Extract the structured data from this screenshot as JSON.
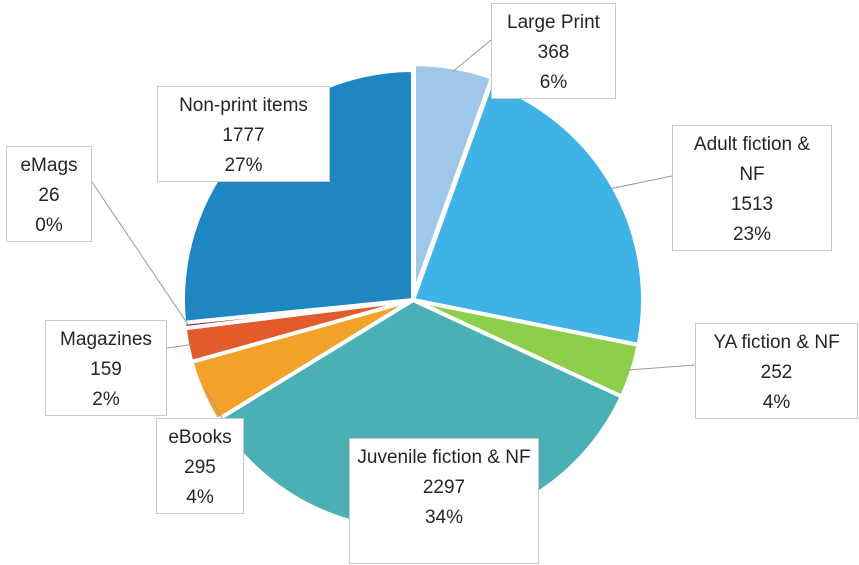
{
  "chart_data": {
    "type": "pie",
    "title": "",
    "slices": [
      {
        "name": "Large Print",
        "value": 368,
        "percent": "6%",
        "color": "#9fc8e8"
      },
      {
        "name": "Adult fiction & NF",
        "value": 1513,
        "percent": "23%",
        "color": "#3fb2e6"
      },
      {
        "name": "YA fiction & NF",
        "value": 252,
        "percent": "4%",
        "color": "#8dcf4a"
      },
      {
        "name": "Juvenile fiction & NF",
        "value": 2297,
        "percent": "34%",
        "color": "#4bb0b6"
      },
      {
        "name": "eBooks",
        "value": 295,
        "percent": "4%",
        "color": "#f2a12a"
      },
      {
        "name": "Magazines",
        "value": 159,
        "percent": "2%",
        "color": "#e35a2b"
      },
      {
        "name": "eMags",
        "value": 26,
        "percent": "0%",
        "color": "#a32d2d"
      },
      {
        "name": "Non-print items",
        "value": 1777,
        "percent": "27%",
        "color": "#1f86c4"
      }
    ],
    "legend": "none",
    "data_labels": "name, value, percent in callout boxes"
  }
}
